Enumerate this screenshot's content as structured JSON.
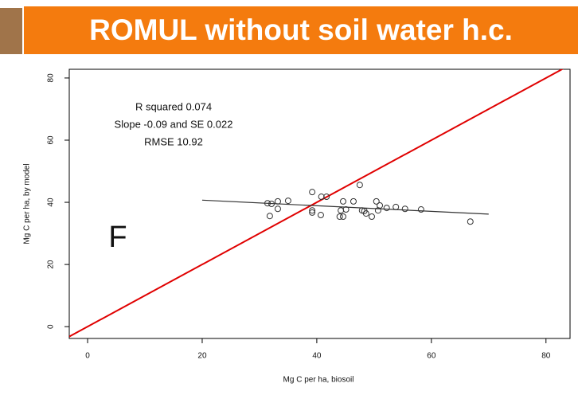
{
  "chart_data": {
    "type": "scatter",
    "title": "ROMUL without soil water h.c.",
    "xlabel": "Mg C per ha, biosoil",
    "ylabel": "Mg C per ha, by model",
    "annotations": [
      "R squared  0.074",
      "Slope  -0.09  and SE  0.022",
      "RMSE 10.92"
    ],
    "panel_letter": "F",
    "x": [
      31.4,
      32.1,
      31.8,
      33.2,
      33.2,
      35.0,
      39.2,
      39.2,
      39.2,
      40.8,
      41.7,
      40.7,
      44.2,
      44.6,
      44.6,
      44.0,
      45.1,
      46.4,
      47.5,
      47.9,
      48.3,
      48.6,
      49.6,
      50.4,
      50.7,
      51.0,
      52.2,
      53.8,
      55.4,
      58.2,
      66.8
    ],
    "y": [
      39.7,
      39.5,
      35.6,
      40.3,
      37.9,
      40.5,
      43.3,
      37.4,
      36.7,
      41.8,
      41.8,
      35.9,
      37.4,
      40.3,
      35.4,
      35.4,
      37.7,
      40.3,
      45.6,
      37.4,
      37.2,
      36.4,
      35.4,
      40.3,
      37.4,
      39.0,
      38.2,
      38.5,
      37.9,
      37.7,
      33.8
    ],
    "marker_color": "#333333",
    "lines": [
      {
        "color": "#e00000",
        "x": [
          -3.2,
          84.2
        ],
        "y": [
          -3.2,
          84.2
        ]
      },
      {
        "color": "#333333",
        "x": [
          20,
          70
        ],
        "y": [
          40.7,
          36.2
        ]
      }
    ],
    "xlim": [
      -3.2,
      84.2
    ],
    "ylim": [
      -3.8,
      82.8
    ],
    "xticks": [
      0,
      20,
      40,
      60,
      80
    ],
    "yticks": [
      0,
      20,
      40,
      60,
      80
    ]
  }
}
